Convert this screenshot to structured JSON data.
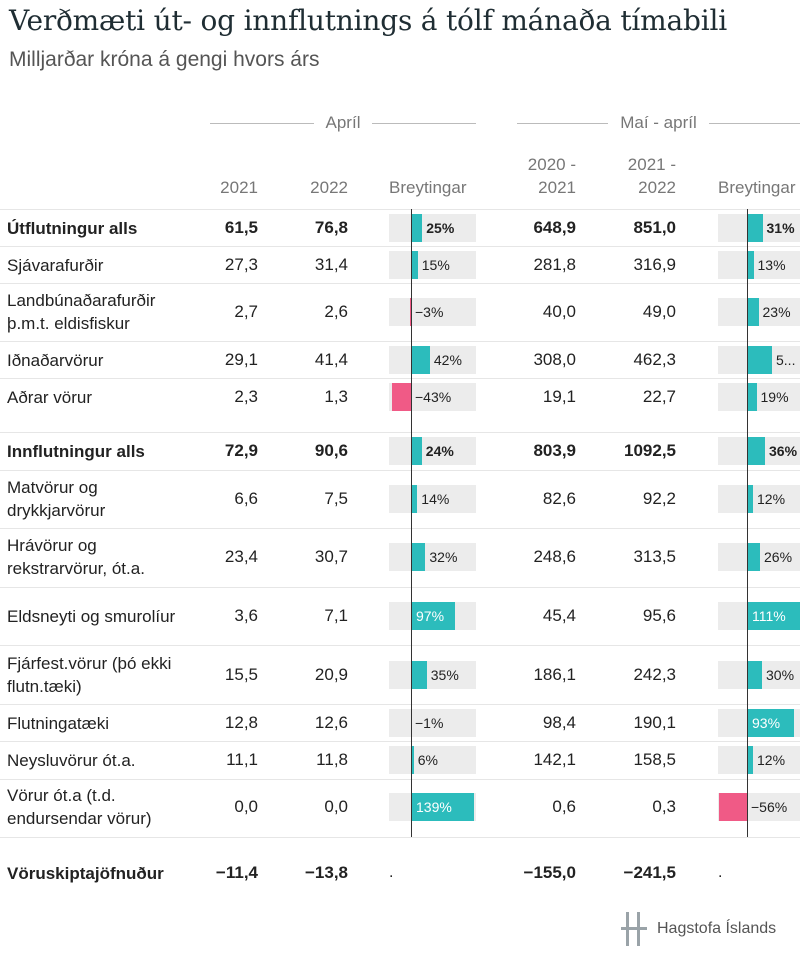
{
  "title": "Verðmæti út- og innflutnings á tólf mánaða tímabili",
  "subtitle": "Milljarðar króna á gengi hvors árs",
  "groups": {
    "april": "Apríl",
    "mai_april": "Maí - apríl"
  },
  "columns": {
    "a2021": "2021",
    "a2022": "2022",
    "change": "Breytingar",
    "p1": [
      "2020 -",
      "2021"
    ],
    "p2": [
      "2021 -",
      "2022"
    ],
    "change2": "Breytingar"
  },
  "colors": {
    "positive": "#2cbcbc",
    "negative": "#f05a86",
    "background_bar": "#ececec"
  },
  "chart_data": {
    "type": "table",
    "title": "Verðmæti út- og innflutnings á tólf mánaða tímabili",
    "subtitle": "Milljarðar króna á gengi hvors árs",
    "rows": [
      {
        "label": "Útflutningur alls",
        "bold": true,
        "april_2021": "61,5",
        "april_2022": "76,8",
        "april_change": 25,
        "april_change_text": "25%",
        "period_1": "648,9",
        "period_2": "851,0",
        "period_change": 31,
        "period_change_text": "31%"
      },
      {
        "label": "Sjávarafurðir",
        "april_2021": "27,3",
        "april_2022": "31,4",
        "april_change": 15,
        "april_change_text": "15%",
        "period_1": "281,8",
        "period_2": "316,9",
        "period_change": 13,
        "period_change_text": "13%"
      },
      {
        "label": "Landbúnaðarafurðir þ.m.t. eldisfiskur",
        "april_2021": "2,7",
        "april_2022": "2,6",
        "april_change": -3,
        "april_change_text": "−3%",
        "period_1": "40,0",
        "period_2": "49,0",
        "period_change": 23,
        "period_change_text": "23%"
      },
      {
        "label": "Iðnaðarvörur",
        "april_2021": "29,1",
        "april_2022": "41,4",
        "april_change": 42,
        "april_change_text": "42%",
        "period_1": "308,0",
        "period_2": "462,3",
        "period_change": 50,
        "period_change_text": "5..."
      },
      {
        "label": "Aðrar vörur",
        "april_2021": "2,3",
        "april_2022": "1,3",
        "april_change": -43,
        "april_change_text": "−43%",
        "period_1": "19,1",
        "period_2": "22,7",
        "period_change": 19,
        "period_change_text": "19%"
      },
      {
        "label": "Innflutningur alls",
        "bold": true,
        "april_2021": "72,9",
        "april_2022": "90,6",
        "april_change": 24,
        "april_change_text": "24%",
        "period_1": "803,9",
        "period_2": "1092,5",
        "period_change": 36,
        "period_change_text": "36%"
      },
      {
        "label": "Matvörur og drykkjarvörur",
        "april_2021": "6,6",
        "april_2022": "7,5",
        "april_change": 14,
        "april_change_text": "14%",
        "period_1": "82,6",
        "period_2": "92,2",
        "period_change": 12,
        "period_change_text": "12%"
      },
      {
        "label": "Hrávörur og rekstrarvörur, ót.a.",
        "april_2021": "23,4",
        "april_2022": "30,7",
        "april_change": 32,
        "april_change_text": "32%",
        "period_1": "248,6",
        "period_2": "313,5",
        "period_change": 26,
        "period_change_text": "26%"
      },
      {
        "label": "Eldsneyti og smurolíur",
        "april_2021": "3,6",
        "april_2022": "7,1",
        "april_change": 97,
        "april_change_text": "97%",
        "period_1": "45,4",
        "period_2": "95,6",
        "period_change": 111,
        "period_change_text": "111%"
      },
      {
        "label": "Fjárfest.vörur (þó ekki flutn.tæki)",
        "april_2021": "15,5",
        "april_2022": "20,9",
        "april_change": 35,
        "april_change_text": "35%",
        "period_1": "186,1",
        "period_2": "242,3",
        "period_change": 30,
        "period_change_text": "30%"
      },
      {
        "label": "Flutningatæki",
        "april_2021": "12,8",
        "april_2022": "12,6",
        "april_change": -1,
        "april_change_text": "−1%",
        "period_1": "98,4",
        "period_2": "190,1",
        "period_change": 93,
        "period_change_text": "93%"
      },
      {
        "label": "Neysluvörur ót.a.",
        "april_2021": "11,1",
        "april_2022": "11,8",
        "april_change": 6,
        "april_change_text": "6%",
        "period_1": "142,1",
        "period_2": "158,5",
        "period_change": 12,
        "period_change_text": "12%"
      },
      {
        "label": "Vörur ót.a (t.d. endursendar vörur)",
        "april_2021": "0,0",
        "april_2022": "0,0",
        "april_change": 139,
        "april_change_text": "139%",
        "period_1": "0,6",
        "period_2": "0,3",
        "period_change": -56,
        "period_change_text": "−56%"
      },
      {
        "label": "Vöruskiptajöfnuður",
        "bold": true,
        "april_2021": "−11,4",
        "april_2022": "−13,8",
        "april_change": null,
        "april_change_text": ".",
        "period_1": "−155,0",
        "period_2": "−241,5",
        "period_change": null,
        "period_change_text": "."
      }
    ]
  },
  "logo": {
    "text": "Hagstofa Íslands",
    "icon": "hagstofa-logo-icon"
  }
}
